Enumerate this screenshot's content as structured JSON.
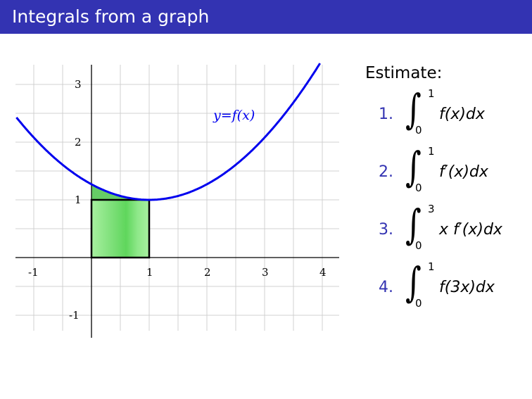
{
  "header": {
    "title": "Integrals from a graph"
  },
  "graph": {
    "curve_label": "y=f(x)",
    "x_ticks": [
      "-1",
      "1",
      "2",
      "3",
      "4"
    ],
    "y_ticks": [
      "3",
      "2",
      "1",
      "-1"
    ],
    "x_tick_values": [
      -1,
      1,
      2,
      3,
      4
    ],
    "y_tick_values": [
      3,
      2,
      1,
      -1
    ],
    "x_range": [
      -1.25,
      4.25
    ],
    "y_range": [
      -1.25,
      3.3
    ],
    "curve_color": "#0000ee",
    "rect_fill_color": "#90ee90"
  },
  "estimate": {
    "label": "Estimate:",
    "items": [
      {
        "num": "1.",
        "upper": "1",
        "lower": "0",
        "integrand": "f(x)dx"
      },
      {
        "num": "2.",
        "upper": "1",
        "lower": "0",
        "integrand": "f′(x)dx"
      },
      {
        "num": "3.",
        "upper": "3",
        "lower": "0",
        "integrand": "x f′(x)dx"
      },
      {
        "num": "4.",
        "upper": "1",
        "lower": "0",
        "integrand": "f(3x)dx"
      }
    ]
  }
}
